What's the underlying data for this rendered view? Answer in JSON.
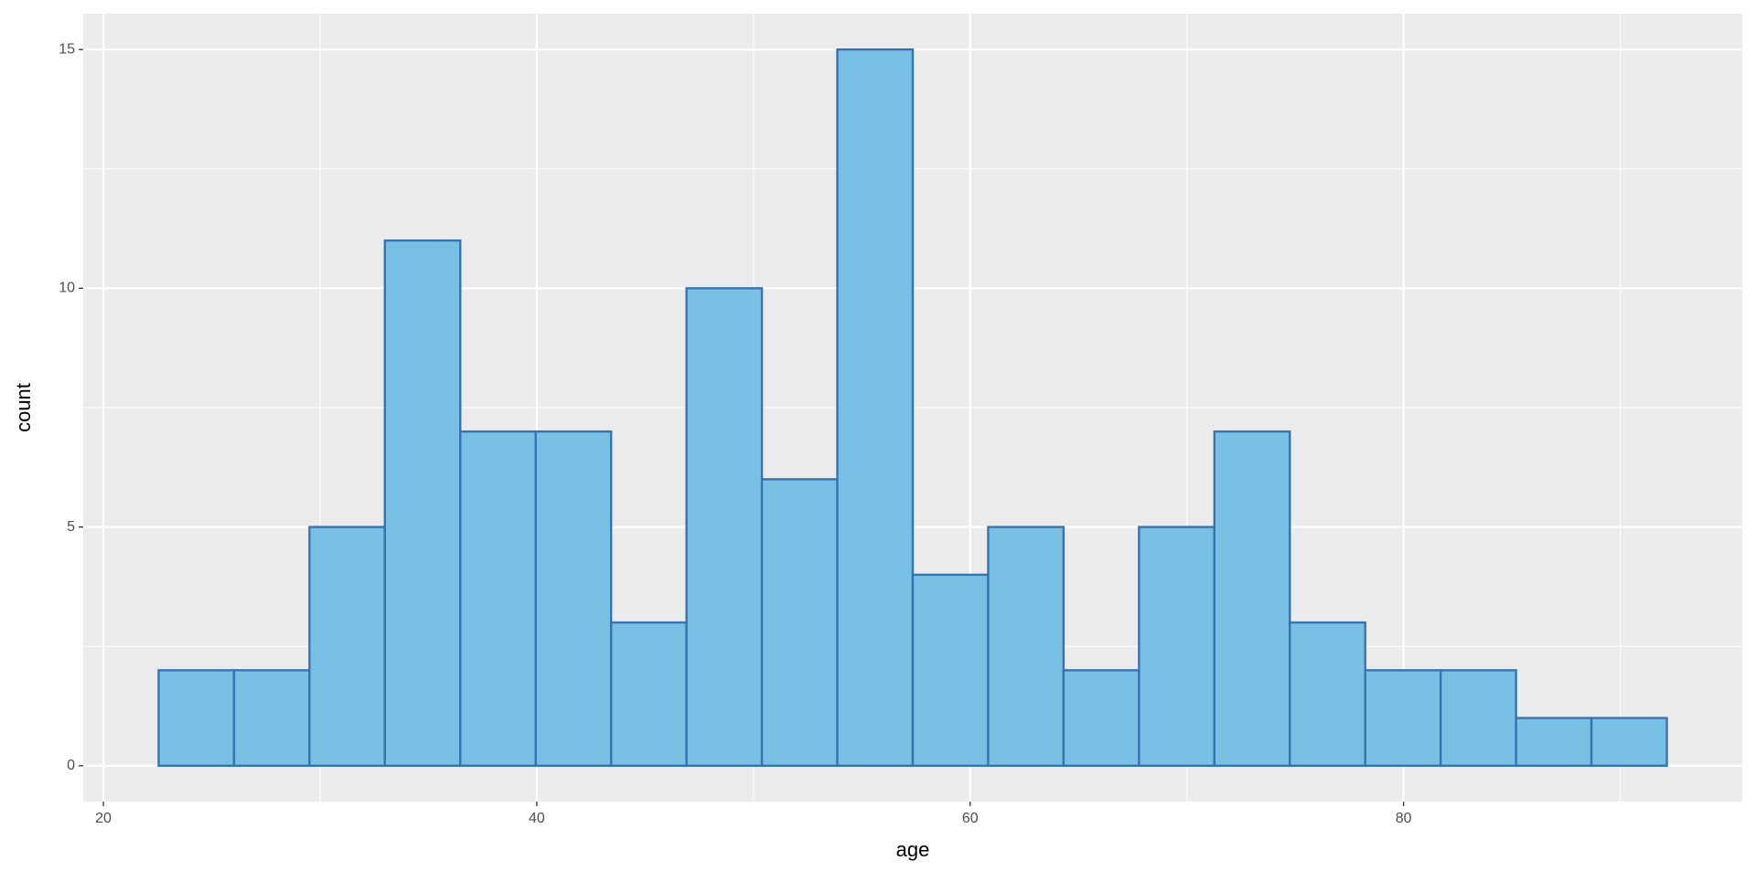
{
  "chart_data": {
    "type": "histogram",
    "x_label": "age",
    "y_label": "count",
    "bins": [
      22.55,
      26.03,
      29.51,
      32.99,
      36.47,
      39.95,
      43.43,
      46.91,
      50.39,
      53.87,
      57.35,
      60.83,
      64.31,
      67.79,
      71.27,
      74.75,
      78.23,
      81.71,
      85.19,
      88.67,
      92.15
    ],
    "counts": [
      2,
      2,
      5,
      11,
      7,
      7,
      3,
      10,
      6,
      15,
      4,
      5,
      2,
      5,
      7,
      3,
      2,
      2,
      1,
      1
    ],
    "color": "#78c1e4",
    "edge_color": "#3a72b0",
    "xlim": [
      19.07,
      95.63
    ],
    "ylim": [
      -0.75,
      15.75
    ],
    "xticks": [
      20,
      40,
      60,
      80
    ],
    "yticks": [
      0,
      5,
      10,
      15
    ],
    "grid": true
  }
}
